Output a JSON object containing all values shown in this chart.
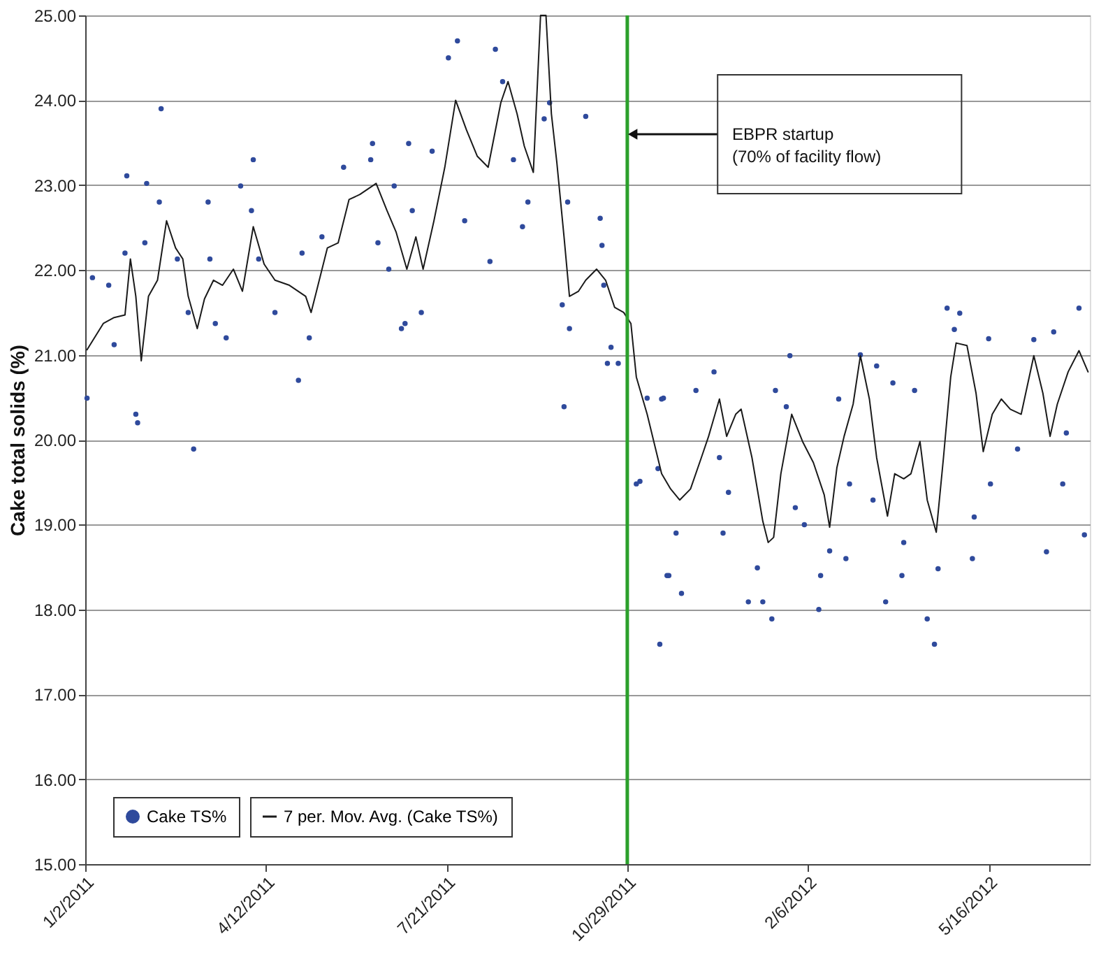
{
  "chart_data": {
    "type": "scatter",
    "ylabel": "Cake total solids (%)",
    "xlim": [
      "2011-01-02",
      "2012-07-11"
    ],
    "xticks": [
      {
        "value": "2011-01-02",
        "label": "1/2/2011"
      },
      {
        "value": "2011-04-12",
        "label": "4/12/2011"
      },
      {
        "value": "2011-07-21",
        "label": "7/21/2011"
      },
      {
        "value": "2011-10-29",
        "label": "10/29/2011"
      },
      {
        "value": "2012-02-06",
        "label": "2/6/2012"
      },
      {
        "value": "2012-05-16",
        "label": "5/16/2012"
      }
    ],
    "ylim": [
      15,
      25
    ],
    "yticks": [
      {
        "value": 15,
        "label": "15.00"
      },
      {
        "value": 16,
        "label": "16.00"
      },
      {
        "value": 17,
        "label": "17.00"
      },
      {
        "value": 18,
        "label": "18.00"
      },
      {
        "value": 19,
        "label": "19.00"
      },
      {
        "value": 20,
        "label": "20.00"
      },
      {
        "value": 21,
        "label": "21.00"
      },
      {
        "value": 22,
        "label": "22.00"
      },
      {
        "value": 23,
        "label": "23.00"
      },
      {
        "value": 24,
        "label": "24.00"
      },
      {
        "value": 25,
        "label": "25.00"
      }
    ],
    "grid": "y",
    "legend": "bottom left",
    "series": [
      {
        "name": "Cake TS%",
        "marker": "circle",
        "color": "#2f4a9c",
        "x": [
          "2011-01-03",
          "2011-01-06",
          "2011-01-15",
          "2011-01-18",
          "2011-01-25",
          "2011-01-24",
          "2011-01-30",
          "2011-01-31",
          "2011-02-05",
          "2011-02-04",
          "2011-02-13",
          "2011-02-12",
          "2011-02-22",
          "2011-02-28",
          "2011-03-03",
          "2011-03-11",
          "2011-03-12",
          "2011-03-15",
          "2011-03-21",
          "2011-03-29",
          "2011-04-05",
          "2011-04-04",
          "2011-04-08",
          "2011-04-17",
          "2011-04-30",
          "2011-05-02",
          "2011-05-06",
          "2011-05-13",
          "2011-05-25",
          "2011-06-10",
          "2011-06-09",
          "2011-06-13",
          "2011-06-19",
          "2011-06-26",
          "2011-06-30",
          "2011-07-02",
          "2011-06-22",
          "2011-06-28",
          "2011-07-07",
          "2011-07-13",
          "2011-07-27",
          "2011-07-22",
          "2011-07-31",
          "2011-08-14",
          "2011-08-17",
          "2011-08-21",
          "2011-09-01",
          "2011-09-04",
          "2011-08-27",
          "2011-09-13",
          "2011-09-16",
          "2011-09-24",
          "2011-09-26",
          "2011-10-06",
          "2011-09-23",
          "2011-09-27",
          "2011-10-14",
          "2011-10-15",
          "2011-10-16",
          "2011-10-18",
          "2011-10-24",
          "2011-10-20",
          "2011-11-05",
          "2011-11-09",
          "2011-11-18",
          "2011-11-20",
          "2011-11-15",
          "2011-11-03",
          "2011-11-16",
          "2011-11-21",
          "2011-11-25",
          "2011-11-28",
          "2011-11-17",
          "2011-12-06",
          "2011-12-16",
          "2011-12-21",
          "2011-12-24",
          "2011-12-19",
          "2012-01-04",
          "2012-01-12",
          "2012-01-09",
          "2012-01-17",
          "2012-01-19",
          "2012-01-27",
          "2012-01-25",
          "2012-01-30",
          "2012-02-04",
          "2012-02-12",
          "2012-02-13",
          "2012-02-18",
          "2012-02-27",
          "2012-02-23",
          "2012-02-29",
          "2012-03-06",
          "2012-03-13",
          "2012-03-15",
          "2012-03-24",
          "2012-04-05",
          "2012-03-20",
          "2012-03-30",
          "2012-03-29",
          "2012-04-12",
          "2012-04-16",
          "2012-04-18",
          "2012-04-23",
          "2012-04-30",
          "2012-04-27",
          "2012-05-07",
          "2012-05-08",
          "2012-05-16",
          "2012-05-17",
          "2012-06-01",
          "2012-06-10",
          "2012-06-17",
          "2012-06-21",
          "2012-06-26",
          "2012-06-28",
          "2012-07-05",
          "2012-07-08"
        ],
        "values": [
          20.49,
          21.91,
          21.82,
          21.12,
          23.11,
          22.2,
          20.3,
          20.2,
          23.02,
          22.32,
          23.9,
          22.8,
          22.13,
          21.5,
          19.89,
          22.8,
          22.13,
          21.37,
          21.2,
          22.99,
          23.3,
          22.7,
          22.13,
          21.5,
          20.7,
          22.2,
          21.2,
          22.39,
          23.21,
          23.49,
          23.3,
          22.32,
          22.01,
          21.31,
          23.49,
          22.7,
          22.99,
          21.37,
          21.5,
          23.4,
          24.7,
          24.5,
          22.58,
          22.1,
          24.6,
          24.22,
          22.51,
          22.8,
          23.3,
          23.78,
          23.97,
          20.39,
          22.8,
          23.81,
          21.59,
          21.31,
          22.61,
          22.29,
          21.82,
          20.9,
          20.9,
          21.09,
          19.51,
          20.49,
          20.49,
          18.4,
          19.66,
          19.48,
          17.59,
          18.4,
          18.9,
          18.19,
          20.48,
          20.58,
          20.8,
          18.9,
          19.38,
          19.79,
          18.09,
          18.09,
          18.49,
          17.89,
          20.58,
          20.99,
          20.39,
          19.2,
          19.0,
          18.0,
          18.4,
          18.69,
          18.6,
          20.48,
          19.48,
          21.0,
          19.29,
          20.87,
          20.67,
          20.58,
          18.09,
          18.79,
          18.4,
          17.89,
          17.59,
          18.48,
          21.55,
          21.49,
          21.3,
          18.6,
          19.09,
          21.19,
          19.48,
          19.89,
          21.18,
          18.68,
          21.27,
          19.48,
          20.08,
          21.55,
          18.88
        ]
      },
      {
        "name": "7 per. Mov. Avg. (Cake TS%)",
        "type": "line",
        "marker": "none",
        "line_style": "solid",
        "color": "#1a1a1a",
        "x": [
          "2011-01-03",
          "2011-01-12",
          "2011-01-18",
          "2011-01-24",
          "2011-01-27",
          "2011-01-30",
          "2011-02-02",
          "2011-02-06",
          "2011-02-11",
          "2011-02-16",
          "2011-02-21",
          "2011-02-25",
          "2011-02-28",
          "2011-03-05",
          "2011-03-09",
          "2011-03-14",
          "2011-03-19",
          "2011-03-25",
          "2011-03-30",
          "2011-04-05",
          "2011-04-11",
          "2011-04-17",
          "2011-04-25",
          "2011-05-04",
          "2011-05-07",
          "2011-05-10",
          "2011-05-16",
          "2011-05-22",
          "2011-05-28",
          "2011-06-03",
          "2011-06-12",
          "2011-06-18",
          "2011-06-23",
          "2011-06-29",
          "2011-07-04",
          "2011-07-08",
          "2011-07-14",
          "2011-07-20",
          "2011-07-26",
          "2011-08-01",
          "2011-08-07",
          "2011-08-13",
          "2011-08-20",
          "2011-08-24",
          "2011-08-29",
          "2011-09-02",
          "2011-09-07",
          "2011-09-11",
          "2011-09-14",
          "2011-09-17",
          "2011-09-20",
          "2011-09-24",
          "2011-09-27",
          "2011-10-02",
          "2011-10-06",
          "2011-10-12",
          "2011-10-17",
          "2011-10-22",
          "2011-10-27",
          "2011-10-31",
          "2011-11-03",
          "2011-11-09",
          "2011-11-17",
          "2011-11-22",
          "2011-11-27",
          "2011-12-03",
          "2011-12-09",
          "2011-12-13",
          "2011-12-19",
          "2011-12-23",
          "2011-12-28",
          "2011-12-31",
          "2012-01-06",
          "2012-01-12",
          "2012-01-15",
          "2012-01-18",
          "2012-01-22",
          "2012-01-28",
          "2012-02-03",
          "2012-02-09",
          "2012-02-15",
          "2012-02-18",
          "2012-02-22",
          "2012-02-26",
          "2012-03-02",
          "2012-03-06",
          "2012-03-11",
          "2012-03-15",
          "2012-03-21",
          "2012-03-25",
          "2012-03-30",
          "2012-04-03",
          "2012-04-08",
          "2012-04-12",
          "2012-04-17",
          "2012-04-21",
          "2012-04-25",
          "2012-04-28",
          "2012-05-04",
          "2012-05-09",
          "2012-05-13",
          "2012-05-18",
          "2012-05-23",
          "2012-05-28",
          "2012-06-03",
          "2012-06-10",
          "2012-06-15",
          "2012-06-19",
          "2012-06-23",
          "2012-06-29",
          "2012-07-05",
          "2012-07-10"
        ],
        "values": [
          21.06,
          21.37,
          21.44,
          21.47,
          22.13,
          21.69,
          20.93,
          21.69,
          21.88,
          22.58,
          22.26,
          22.13,
          21.69,
          21.31,
          21.66,
          21.88,
          21.82,
          22.01,
          21.75,
          22.51,
          22.07,
          21.88,
          21.82,
          21.69,
          21.5,
          21.75,
          22.26,
          22.32,
          22.83,
          22.89,
          23.02,
          22.7,
          22.45,
          22.01,
          22.39,
          22.01,
          22.58,
          23.21,
          24.0,
          23.65,
          23.34,
          23.21,
          23.97,
          24.22,
          23.84,
          23.46,
          23.15,
          25.0,
          25.0,
          23.84,
          23.27,
          22.39,
          21.69,
          21.75,
          21.88,
          22.01,
          21.88,
          21.56,
          21.5,
          21.37,
          20.74,
          20.3,
          19.6,
          19.42,
          19.29,
          19.42,
          19.79,
          20.04,
          20.48,
          20.04,
          20.3,
          20.36,
          19.79,
          19.04,
          18.79,
          18.85,
          19.6,
          20.3,
          19.98,
          19.73,
          19.35,
          18.97,
          19.67,
          20.04,
          20.42,
          20.99,
          20.48,
          19.79,
          19.1,
          19.6,
          19.54,
          19.6,
          19.98,
          19.29,
          18.91,
          19.79,
          20.74,
          21.14,
          21.11,
          20.55,
          19.86,
          20.3,
          20.48,
          20.36,
          20.3,
          20.99,
          20.55,
          20.04,
          20.42,
          20.8,
          21.05,
          20.8
        ]
      }
    ],
    "ref_lines": [
      {
        "axis": "x",
        "value": "2011-10-29",
        "color": "#2ca02c",
        "line_style": "solid",
        "label": null
      }
    ],
    "annotations": [
      {
        "text": "EBPR startup\n(70% of facility flow)",
        "x": "2011-10-29",
        "y": 23.6
      }
    ]
  }
}
